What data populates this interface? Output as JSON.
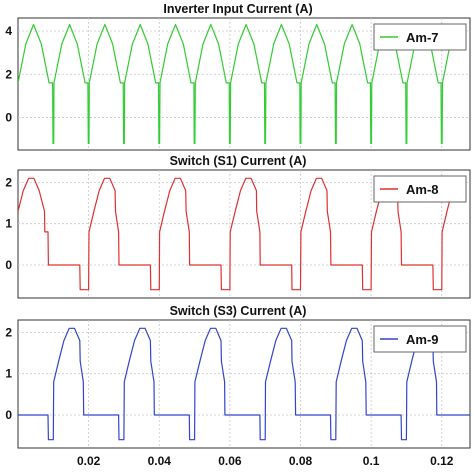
{
  "chart_data": [
    {
      "type": "line",
      "title": "Inverter Input Current (A)",
      "xlabel": "",
      "ylabel": "",
      "xlim": [
        0.0,
        0.128
      ],
      "ylim": [
        -1.5,
        4.6
      ],
      "yticks": [
        0,
        2,
        4
      ],
      "xticks": [],
      "grid": true,
      "legend_position": "top-right",
      "series": [
        {
          "name": "Am-7",
          "color": "#33cc33",
          "x": [
            0.0,
            0.0022,
            0.0044,
            0.0066,
            0.0088,
            0.0098,
            0.0099,
            0.0101,
            0.0102,
            0.0124,
            0.0146,
            0.0168,
            0.019,
            0.0198,
            0.0199,
            0.0201,
            0.0202,
            0.0224,
            0.0246,
            0.0268,
            0.029,
            0.0298,
            0.0299,
            0.0301,
            0.0302,
            0.0324,
            0.0346,
            0.0368,
            0.039,
            0.0398,
            0.0399,
            0.0401,
            0.0402,
            0.0424,
            0.0446,
            0.0468,
            0.049,
            0.0498,
            0.0499,
            0.0501,
            0.0502,
            0.0524,
            0.0546,
            0.0568,
            0.059,
            0.0598,
            0.0599,
            0.0601,
            0.0602,
            0.0624,
            0.0646,
            0.0668,
            0.069,
            0.0698,
            0.0699,
            0.0701,
            0.0702,
            0.0724,
            0.0746,
            0.0768,
            0.079,
            0.0798,
            0.0799,
            0.0801,
            0.0802,
            0.0824,
            0.0846,
            0.0868,
            0.089,
            0.0898,
            0.0899,
            0.0901,
            0.0902,
            0.0924,
            0.0946,
            0.0968,
            0.099,
            0.0998,
            0.0999,
            0.1001,
            0.1002,
            0.1024,
            0.1046,
            0.1068,
            0.109,
            0.1098,
            0.1099,
            0.1101,
            0.1102,
            0.1124,
            0.1146,
            0.1168,
            0.119,
            0.1198,
            0.1199,
            0.1201,
            0.1202,
            0.1224,
            0.1246,
            0.1268
          ],
          "y": [
            1.6,
            3.4,
            4.3,
            3.4,
            1.6,
            1.6,
            -1.2,
            -1.2,
            1.6,
            3.4,
            4.3,
            3.4,
            1.6,
            1.6,
            -1.2,
            -1.2,
            1.6,
            3.4,
            4.3,
            3.4,
            1.6,
            1.6,
            -1.2,
            -1.2,
            1.6,
            3.4,
            4.3,
            3.4,
            1.6,
            1.6,
            -1.2,
            -1.2,
            1.6,
            3.4,
            4.3,
            3.4,
            1.6,
            1.6,
            -1.2,
            -1.2,
            1.6,
            3.4,
            4.3,
            3.4,
            1.6,
            1.6,
            -1.2,
            -1.2,
            1.6,
            3.4,
            4.3,
            3.4,
            1.6,
            1.6,
            -1.2,
            -1.2,
            1.6,
            3.4,
            4.3,
            3.4,
            1.6,
            1.6,
            -1.2,
            -1.2,
            1.6,
            3.4,
            4.3,
            3.4,
            1.6,
            1.6,
            -1.2,
            -1.2,
            1.6,
            3.4,
            4.3,
            3.4,
            1.6,
            1.6,
            -1.2,
            -1.2,
            1.6,
            3.4,
            4.3,
            3.4,
            1.6,
            1.6,
            -1.2,
            -1.2,
            1.6,
            3.4,
            4.3,
            3.4,
            1.6,
            1.6,
            -1.2,
            -1.2,
            1.6,
            3.4,
            4.3,
            3.4
          ]
        }
      ]
    },
    {
      "type": "line",
      "title": "Switch (S1) Current (A)",
      "xlabel": "",
      "ylabel": "",
      "xlim": [
        0.0,
        0.128
      ],
      "ylim": [
        -0.8,
        2.3
      ],
      "yticks": [
        0,
        1,
        2
      ],
      "xticks": [],
      "grid": true,
      "legend_position": "top-right",
      "series": [
        {
          "name": "Am-8",
          "color": "#e03030",
          "x": [
            0.0,
            0.0015,
            0.003,
            0.0045,
            0.006,
            0.0075,
            0.0076,
            0.0085,
            0.0086,
            0.0175,
            0.0176,
            0.02,
            0.0201,
            0.0215,
            0.023,
            0.0245,
            0.026,
            0.0275,
            0.0276,
            0.0285,
            0.0286,
            0.0375,
            0.0376,
            0.04,
            0.0401,
            0.0415,
            0.043,
            0.0445,
            0.046,
            0.0475,
            0.0476,
            0.0485,
            0.0486,
            0.0575,
            0.0576,
            0.06,
            0.0601,
            0.0615,
            0.063,
            0.0645,
            0.066,
            0.0675,
            0.0676,
            0.0685,
            0.0686,
            0.0775,
            0.0776,
            0.08,
            0.0801,
            0.0815,
            0.083,
            0.0845,
            0.086,
            0.0875,
            0.0876,
            0.0885,
            0.0886,
            0.0975,
            0.0976,
            0.1,
            0.1001,
            0.1015,
            0.103,
            0.1045,
            0.106,
            0.1075,
            0.1076,
            0.1085,
            0.1086,
            0.1175,
            0.1176,
            0.12,
            0.1201,
            0.1215,
            0.123,
            0.1245,
            0.126
          ],
          "y": [
            1.3,
            1.8,
            2.1,
            2.1,
            1.8,
            1.3,
            0.8,
            0.8,
            0.0,
            0.0,
            -0.6,
            -0.6,
            0.8,
            1.3,
            1.8,
            2.1,
            2.1,
            1.8,
            1.3,
            0.8,
            0.0,
            0.0,
            -0.6,
            -0.6,
            0.8,
            1.3,
            1.8,
            2.1,
            2.1,
            1.8,
            1.3,
            0.8,
            0.0,
            0.0,
            -0.6,
            -0.6,
            0.8,
            1.3,
            1.8,
            2.1,
            2.1,
            1.8,
            1.3,
            0.8,
            0.0,
            0.0,
            -0.6,
            -0.6,
            0.8,
            1.3,
            1.8,
            2.1,
            2.1,
            1.8,
            1.3,
            0.8,
            0.0,
            0.0,
            -0.6,
            -0.6,
            0.8,
            1.3,
            1.8,
            2.1,
            2.1,
            1.8,
            1.3,
            0.8,
            0.0,
            0.0,
            -0.6,
            -0.6,
            0.8,
            1.3,
            1.8,
            2.1,
            2.1
          ]
        }
      ]
    },
    {
      "type": "line",
      "title": "Switch (S3) Current (A)",
      "xlabel": "",
      "ylabel": "",
      "xlim": [
        0.0,
        0.128
      ],
      "ylim": [
        -0.8,
        2.3
      ],
      "yticks": [
        0,
        1,
        2
      ],
      "xticks": [
        0.02,
        0.04,
        0.06,
        0.08,
        0.1,
        0.12
      ],
      "grid": true,
      "legend_position": "top-right",
      "series": [
        {
          "name": "Am-9",
          "color": "#3344cc",
          "x": [
            0.0,
            0.0085,
            0.0086,
            0.01,
            0.0101,
            0.0115,
            0.013,
            0.0145,
            0.016,
            0.0175,
            0.0176,
            0.0185,
            0.0186,
            0.0285,
            0.0286,
            0.03,
            0.0301,
            0.0315,
            0.033,
            0.0345,
            0.036,
            0.0375,
            0.0376,
            0.0385,
            0.0386,
            0.0485,
            0.0486,
            0.05,
            0.0501,
            0.0515,
            0.053,
            0.0545,
            0.056,
            0.0575,
            0.0576,
            0.0585,
            0.0586,
            0.0685,
            0.0686,
            0.07,
            0.0701,
            0.0715,
            0.073,
            0.0745,
            0.076,
            0.0775,
            0.0776,
            0.0785,
            0.0786,
            0.0885,
            0.0886,
            0.09,
            0.0901,
            0.0915,
            0.093,
            0.0945,
            0.096,
            0.0975,
            0.0976,
            0.0985,
            0.0986,
            0.1085,
            0.1086,
            0.11,
            0.1101,
            0.1115,
            0.113,
            0.1145,
            0.116,
            0.1175,
            0.1176,
            0.1185,
            0.1186,
            0.1285
          ],
          "y": [
            0.0,
            0.0,
            -0.6,
            -0.6,
            0.8,
            1.3,
            1.8,
            2.1,
            2.1,
            1.8,
            1.3,
            0.8,
            0.0,
            0.0,
            -0.6,
            -0.6,
            0.8,
            1.3,
            1.8,
            2.1,
            2.1,
            1.8,
            1.3,
            0.8,
            0.0,
            0.0,
            -0.6,
            -0.6,
            0.8,
            1.3,
            1.8,
            2.1,
            2.1,
            1.8,
            1.3,
            0.8,
            0.0,
            0.0,
            -0.6,
            -0.6,
            0.8,
            1.3,
            1.8,
            2.1,
            2.1,
            1.8,
            1.3,
            0.8,
            0.0,
            0.0,
            -0.6,
            -0.6,
            0.8,
            1.3,
            1.8,
            2.1,
            2.1,
            1.8,
            1.3,
            0.8,
            0.0,
            0.0,
            -0.6,
            -0.6,
            0.8,
            1.3,
            1.8,
            2.1,
            2.1,
            1.8,
            1.3,
            0.8,
            0.0,
            0.0
          ]
        }
      ]
    }
  ]
}
